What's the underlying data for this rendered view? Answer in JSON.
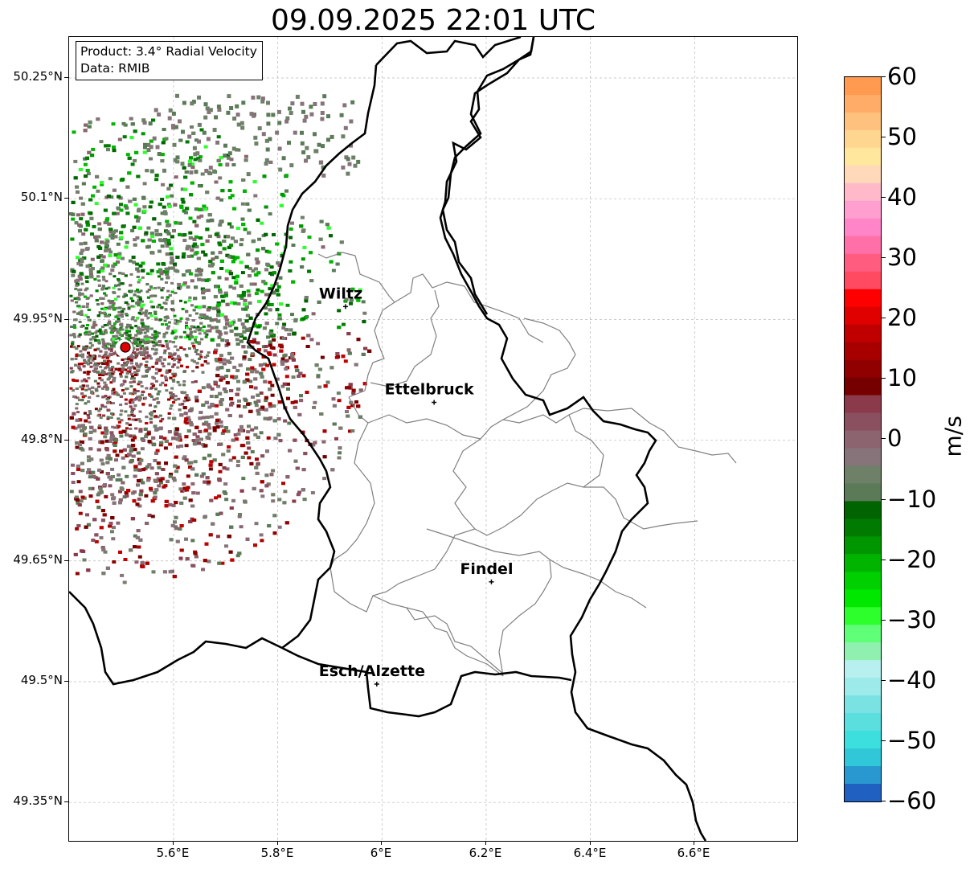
{
  "title": "09.09.2025 22:01 UTC",
  "info": {
    "product": "Product: 3.4° Radial Velocity",
    "data": "Data: RMIB"
  },
  "map": {
    "lat_labels": [
      "50.25°N",
      "50.1°N",
      "49.95°N",
      "49.8°N",
      "49.65°N",
      "49.5°N",
      "49.35°N"
    ],
    "lon_labels": [
      "5.6°E",
      "5.8°E",
      "6°E",
      "6.2°E",
      "6.4°E",
      "6.6°E"
    ],
    "cities": [
      {
        "name": "Wiltz",
        "lon": 5.93,
        "lat": 49.966
      },
      {
        "name": "Ettelbruck",
        "lon": 6.1,
        "lat": 49.847
      },
      {
        "name": "Findel",
        "lon": 6.21,
        "lat": 49.624
      },
      {
        "name": "Esch/Alzette",
        "lon": 5.99,
        "lat": 49.497
      }
    ],
    "radar_site": {
      "lon": 5.505,
      "lat": 49.914
    },
    "colors": {
      "border": "#000000",
      "cantons": "#808080",
      "grid": "#b0b0b0",
      "radar_marker": "#e00000"
    }
  },
  "colorbar": {
    "unit": "m/s",
    "tick_labels": [
      "60",
      "50",
      "40",
      "30",
      "20",
      "10",
      "0",
      "−10",
      "−20",
      "−30",
      "−40",
      "−50",
      "−60"
    ],
    "colors": [
      "#ff9a50",
      "#ffac68",
      "#ffc27e",
      "#ffd690",
      "#ffe79e",
      "#ffd9b9",
      "#ffb9c9",
      "#ff9fd0",
      "#ff85c8",
      "#ff6fa8",
      "#ff5c80",
      "#ff4a62",
      "#ff0000",
      "#e00000",
      "#c00000",
      "#a80000",
      "#900000",
      "#760000",
      "#8a3a4a",
      "#8a5060",
      "#8c6470",
      "#86747a",
      "#6e8068",
      "#5a7a58",
      "#006400",
      "#007a00",
      "#009600",
      "#00b400",
      "#00d000",
      "#00e800",
      "#2cff2c",
      "#60ff78",
      "#90f0b0",
      "#b8f0f0",
      "#9ceaea",
      "#7ae2e2",
      "#5adede",
      "#3cdede",
      "#30c8d8",
      "#2a98d0",
      "#2060c0"
    ]
  }
}
